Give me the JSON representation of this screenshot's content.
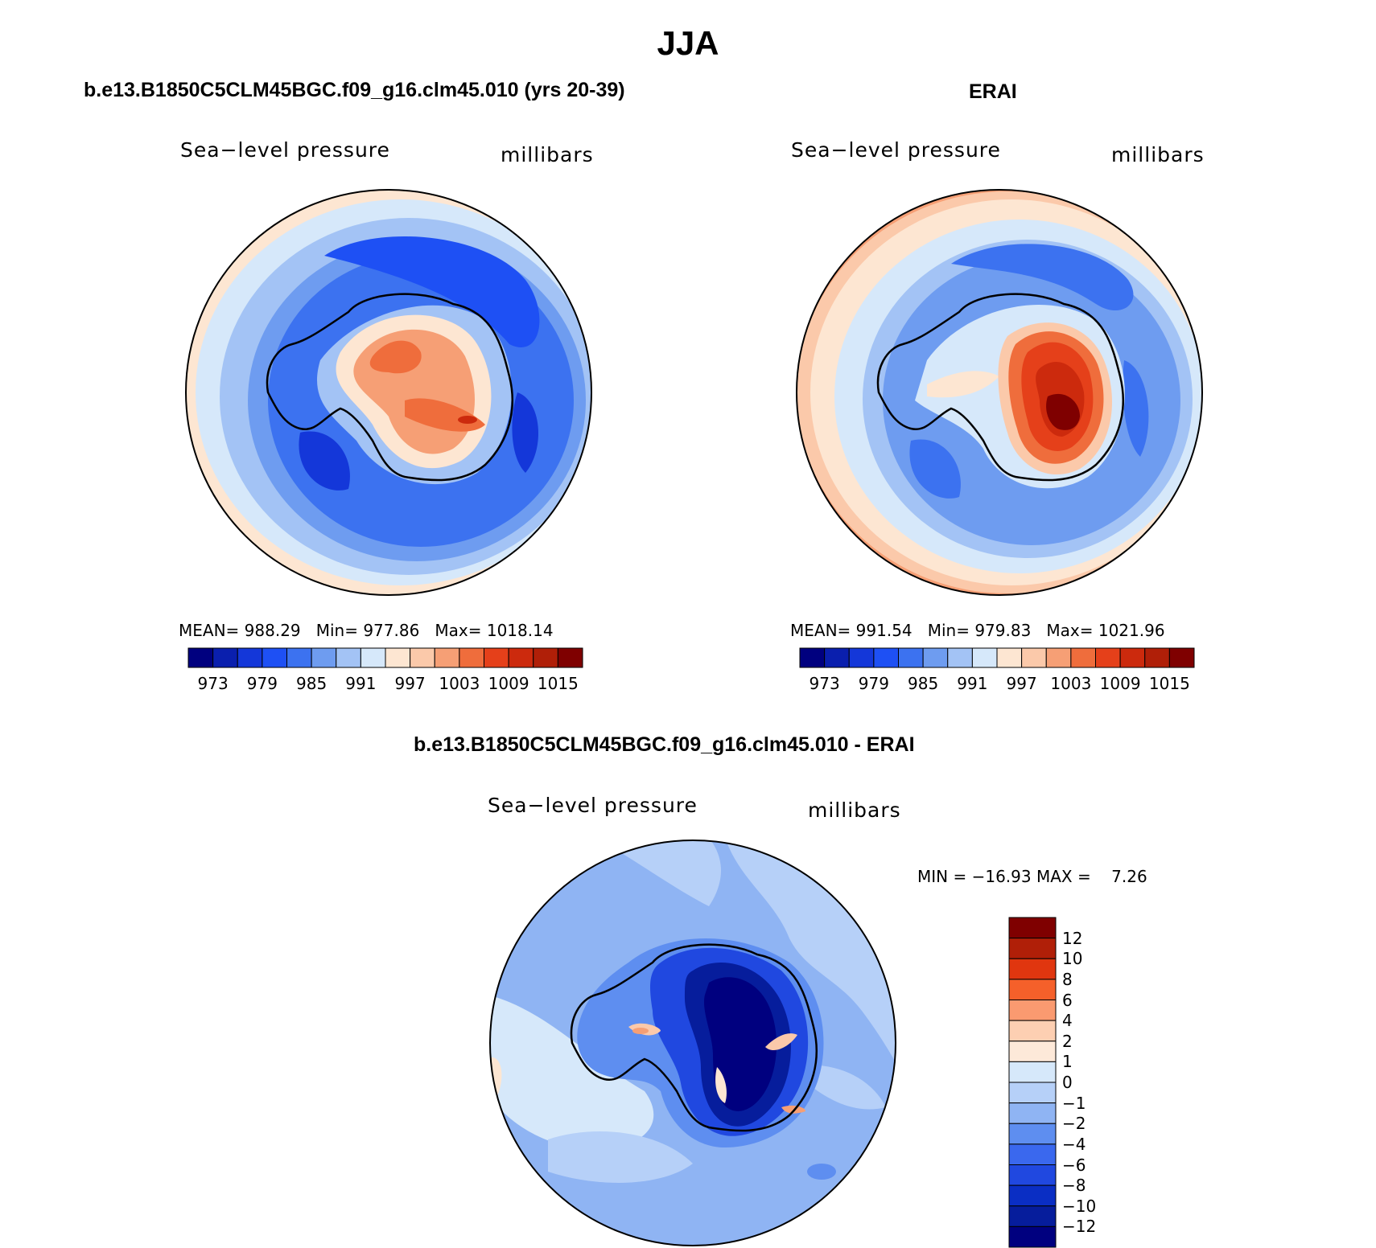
{
  "figure": {
    "title": "JJA",
    "panels": [
      {
        "id": "model",
        "title": "b.e13.B1850C5CLM45BGC.f09_g16.clm45.010 (yrs 20-39)",
        "variable": "Sea−level pressure",
        "units": "millibars",
        "stats": {
          "mean_label": "MEAN=",
          "mean": "988.29",
          "min_label": "Min=",
          "min": "977.86",
          "max_label": "Max=",
          "max": "1018.14"
        }
      },
      {
        "id": "obs",
        "title": "ERAI",
        "variable": "Sea−level pressure",
        "units": "millibars",
        "stats": {
          "mean_label": "MEAN=",
          "mean": "991.54",
          "min_label": "Min=",
          "min": "979.83",
          "max_label": "Max=",
          "max": "1021.96"
        }
      },
      {
        "id": "diff",
        "title": "b.e13.B1850C5CLM45BGC.f09_g16.clm45.010 - ERAI",
        "variable": "Sea−level pressure",
        "units": "millibars",
        "stats": {
          "min_label": "MIN =",
          "min": "−16.93",
          "max_label": "MAX =",
          "max": "7.26"
        }
      }
    ],
    "abs_colorbar": {
      "colors": [
        "#00007f",
        "#0a1fae",
        "#1437d9",
        "#1e50f4",
        "#3c72f0",
        "#6e9cf0",
        "#a3c3f5",
        "#d6e8fa",
        "#fde6d2",
        "#fbc9aa",
        "#f69f75",
        "#ef6d3c",
        "#e5401a",
        "#cc2a0d",
        "#b01f08",
        "#7f0000"
      ],
      "tick_labels": [
        "973",
        "979",
        "985",
        "991",
        "997",
        "1003",
        "1009",
        "1015"
      ]
    },
    "diff_colorbar": {
      "colors": [
        "#7f0000",
        "#b01f08",
        "#e0360f",
        "#f5602a",
        "#fa9a70",
        "#fdcfb2",
        "#fde9d9",
        "#d6e8fa",
        "#b6d0f8",
        "#8fb4f3",
        "#5e8ef0",
        "#3a68ee",
        "#2048e0",
        "#0a2ec4",
        "#061d9c",
        "#00007f"
      ],
      "tick_labels": [
        "12",
        "10",
        "8",
        "6",
        "4",
        "2",
        "1",
        "0",
        "−1",
        "−2",
        "−4",
        "−6",
        "−8",
        "−10",
        "−12"
      ]
    }
  }
}
